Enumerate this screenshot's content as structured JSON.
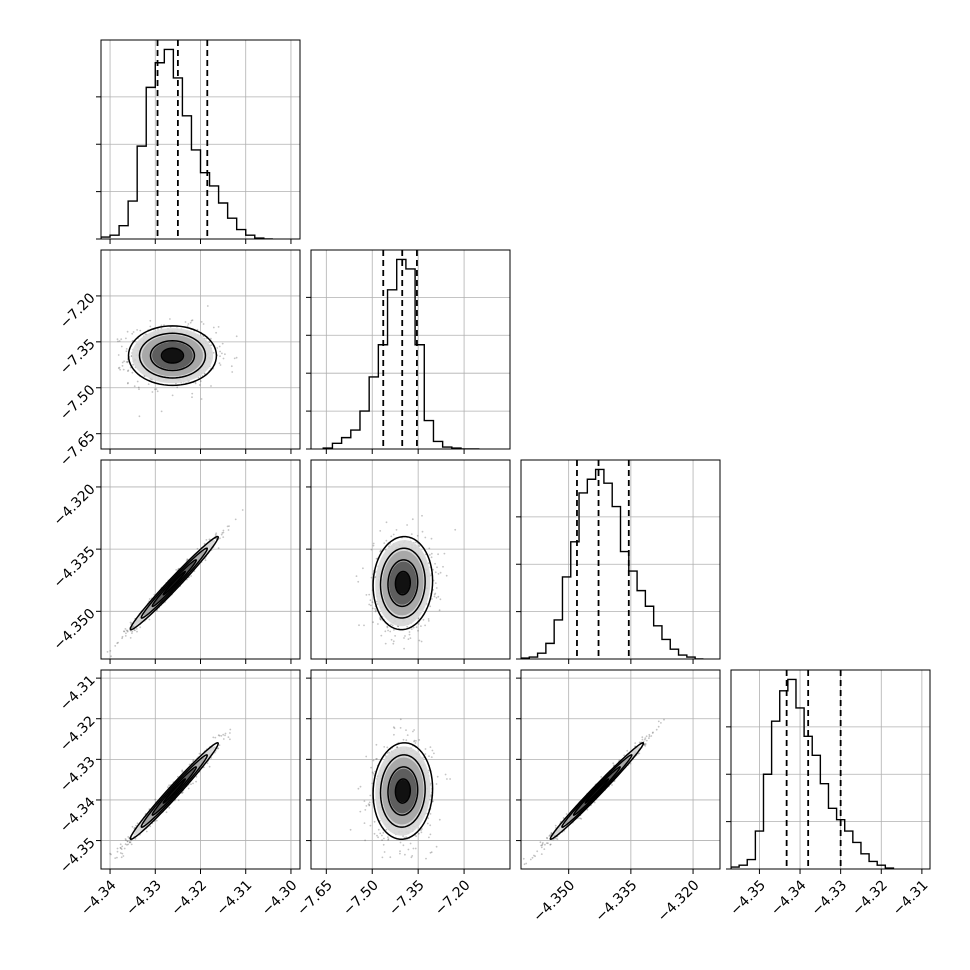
{
  "chart_data": {
    "type": "corner",
    "grid": true,
    "parameters": [
      {
        "range": [
          -4.342,
          -4.298
        ],
        "ticks": [
          -4.34,
          -4.33,
          -4.32,
          -4.31,
          -4.3
        ],
        "tick_labels": [
          "−4.34",
          "−4.33",
          "−4.32",
          "−4.31",
          "−4.30"
        ],
        "quantiles": [
          -4.3295,
          -4.325,
          -4.3185
        ],
        "hist_edges": [
          -4.342,
          -4.34,
          -4.338,
          -4.336,
          -4.334,
          -4.332,
          -4.33,
          -4.328,
          -4.326,
          -4.324,
          -4.322,
          -4.32,
          -4.318,
          -4.316,
          -4.314,
          -4.312,
          -4.31,
          -4.308,
          -4.306,
          -4.304
        ],
        "hist_counts": [
          0.01,
          0.02,
          0.07,
          0.2,
          0.49,
          0.8,
          0.93,
          1.0,
          0.85,
          0.65,
          0.47,
          0.35,
          0.28,
          0.19,
          0.11,
          0.05,
          0.02,
          0.005,
          0.0
        ],
        "hist_ticks": [
          0.0,
          0.25,
          0.5,
          0.75
        ]
      },
      {
        "range": [
          -7.7,
          -7.05
        ],
        "ticks": [
          -7.65,
          -7.5,
          -7.35,
          -7.2
        ],
        "tick_labels": [
          "−7.65",
          "−7.50",
          "−7.35",
          "−7.20"
        ],
        "quantiles": [
          -7.464,
          -7.402,
          -7.354
        ],
        "hist_edges": [
          -7.66,
          -7.63,
          -7.6,
          -7.57,
          -7.54,
          -7.51,
          -7.48,
          -7.45,
          -7.42,
          -7.39,
          -7.36,
          -7.33,
          -7.3,
          -7.27,
          -7.24,
          -7.21,
          -7.18,
          -7.15
        ],
        "hist_counts": [
          0.005,
          0.03,
          0.06,
          0.1,
          0.2,
          0.38,
          0.55,
          0.84,
          1.0,
          0.95,
          0.55,
          0.15,
          0.04,
          0.01,
          0.005,
          0.0,
          0.0
        ],
        "hist_ticks": [
          0.0,
          0.2,
          0.4,
          0.6,
          0.8
        ]
      },
      {
        "range": [
          -4.3615,
          -4.3135
        ],
        "ticks": [
          -4.35,
          -4.335,
          -4.32
        ],
        "tick_labels": [
          "−4.350",
          "−4.335",
          "−4.320"
        ],
        "quantiles": [
          -4.348,
          -4.3428,
          -4.3355
        ],
        "hist_edges": [
          -4.3615,
          -4.3595,
          -4.3575,
          -4.3555,
          -4.3535,
          -4.3515,
          -4.3495,
          -4.3475,
          -4.3455,
          -4.3435,
          -4.3415,
          -4.3395,
          -4.3375,
          -4.3355,
          -4.3335,
          -4.3315,
          -4.3295,
          -4.3275,
          -4.3255,
          -4.3235,
          -4.3215,
          -4.3195,
          -4.3175
        ],
        "hist_counts": [
          0.005,
          0.01,
          0.03,
          0.08,
          0.2,
          0.42,
          0.6,
          0.85,
          0.92,
          0.97,
          0.9,
          0.78,
          0.55,
          0.45,
          0.35,
          0.27,
          0.17,
          0.1,
          0.05,
          0.02,
          0.01,
          0.0
        ],
        "hist_ticks": [
          0.0,
          0.25,
          0.5,
          0.75
        ]
      },
      {
        "range": [
          -4.357,
          -4.308
        ],
        "ticks": [
          -4.35,
          -4.34,
          -4.33,
          -4.32,
          -4.31
        ],
        "tick_labels": [
          "−4.35",
          "−4.34",
          "−4.33",
          "−4.32",
          "−4.31"
        ],
        "quantiles": [
          -4.3433,
          -4.338,
          -4.33
        ],
        "hist_edges": [
          -4.357,
          -4.355,
          -4.353,
          -4.351,
          -4.349,
          -4.347,
          -4.345,
          -4.343,
          -4.341,
          -4.339,
          -4.337,
          -4.335,
          -4.333,
          -4.331,
          -4.329,
          -4.327,
          -4.325,
          -4.323,
          -4.321,
          -4.319,
          -4.317
        ],
        "hist_counts": [
          0.01,
          0.02,
          0.05,
          0.2,
          0.5,
          0.78,
          0.94,
          1.0,
          0.85,
          0.7,
          0.6,
          0.45,
          0.32,
          0.26,
          0.2,
          0.14,
          0.08,
          0.04,
          0.02,
          0.005
        ],
        "hist_ticks": [
          0.0,
          0.25,
          0.5,
          0.75
        ]
      }
    ],
    "pairs": [
      {
        "row": 1,
        "col": 0,
        "center": [
          -4.3262,
          -7.395
        ],
        "sd": [
          0.0045,
          0.045
        ],
        "rho": 0.0
      },
      {
        "row": 2,
        "col": 0,
        "center": [
          -4.3258,
          -4.3432
        ],
        "sd": [
          0.0045,
          0.0052
        ],
        "rho": 0.985
      },
      {
        "row": 2,
        "col": 1,
        "center": [
          -7.4,
          -4.3432
        ],
        "sd": [
          0.045,
          0.0052
        ],
        "rho": 0.05
      },
      {
        "row": 3,
        "col": 0,
        "center": [
          -4.3258,
          -4.3378
        ],
        "sd": [
          0.0045,
          0.0055
        ],
        "rho": 0.985
      },
      {
        "row": 3,
        "col": 1,
        "center": [
          -7.4,
          -4.3378
        ],
        "sd": [
          0.045,
          0.0055
        ],
        "rho": 0.05
      },
      {
        "row": 3,
        "col": 2,
        "center": [
          -4.3432,
          -4.3378
        ],
        "sd": [
          0.0052,
          0.0055
        ],
        "rho": 0.99
      }
    ],
    "contour_levels_sigma": [
      0.5,
      1.0,
      1.5,
      2.0
    ]
  }
}
